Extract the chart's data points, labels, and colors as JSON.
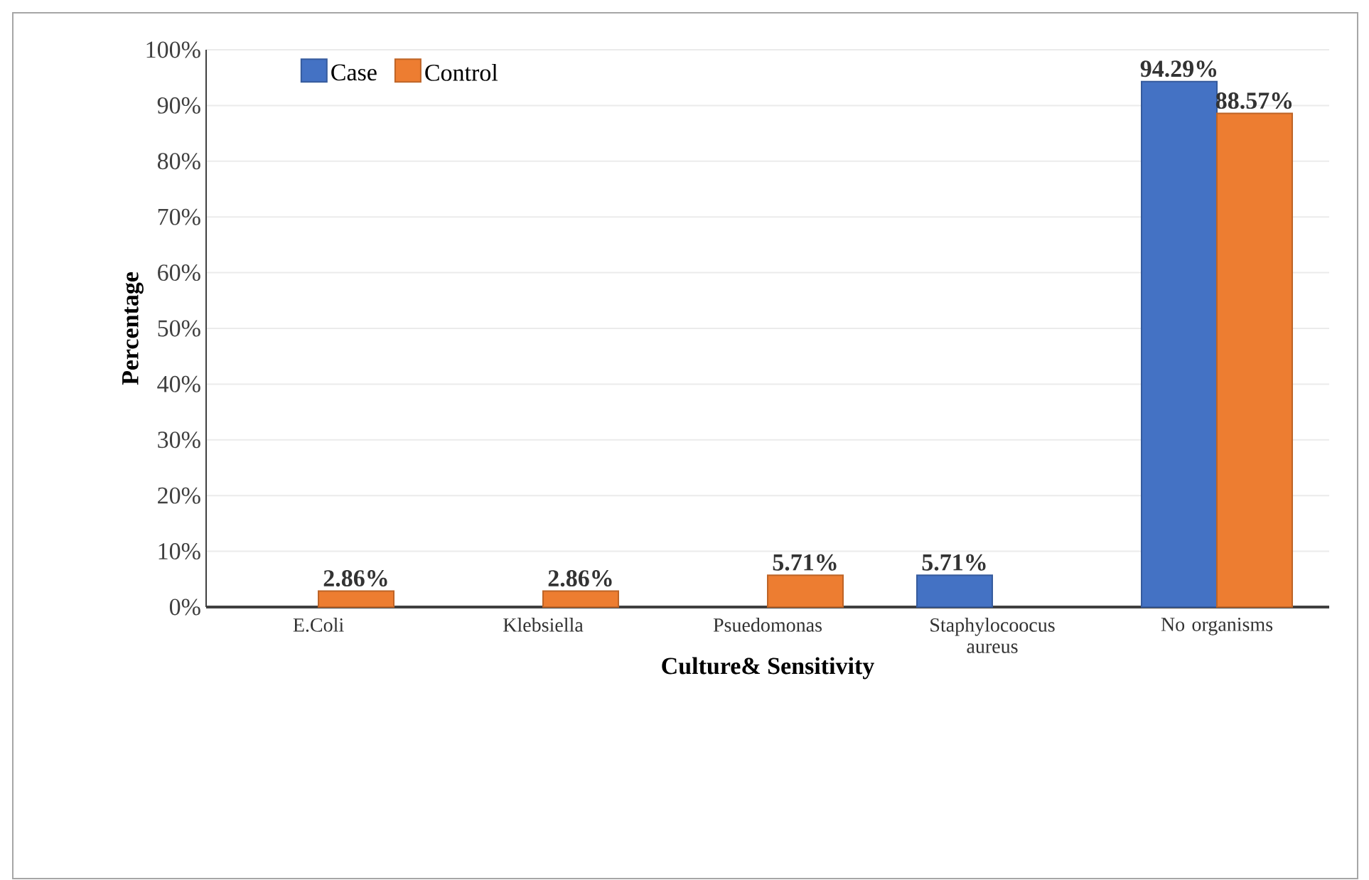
{
  "chart_data": {
    "type": "bar",
    "xlabel": "Culture& Sensitivity",
    "ylabel": "Percentage",
    "categories": [
      "E.Coli",
      "Klebsiella",
      "Psuedomonas",
      "Staphylocoocus aureus",
      "No organisms"
    ],
    "series": [
      {
        "name": "Case",
        "color": "#4472c4",
        "values": [
          null,
          null,
          null,
          5.71,
          94.29
        ],
        "value_labels": [
          null,
          null,
          null,
          "5.71%",
          "94.29%"
        ]
      },
      {
        "name": "Control",
        "color": "#ed7d31",
        "values": [
          2.86,
          2.86,
          5.71,
          null,
          88.57
        ],
        "value_labels": [
          "2.86%",
          "2.86%",
          "5.71%",
          null,
          "88.57%"
        ]
      }
    ],
    "ylim": [
      0,
      100
    ],
    "yticks": [
      {
        "value": 0,
        "label": "0%"
      },
      {
        "value": 10,
        "label": "10%"
      },
      {
        "value": 20,
        "label": "20%"
      },
      {
        "value": 30,
        "label": "30%"
      },
      {
        "value": 40,
        "label": "40%"
      },
      {
        "value": 50,
        "label": "50%"
      },
      {
        "value": 60,
        "label": "60%"
      },
      {
        "value": 70,
        "label": "70%"
      },
      {
        "value": 80,
        "label": "80%"
      },
      {
        "value": 90,
        "label": "90%"
      },
      {
        "value": 100,
        "label": "100%"
      }
    ],
    "grid": "y",
    "legend": "top left"
  }
}
